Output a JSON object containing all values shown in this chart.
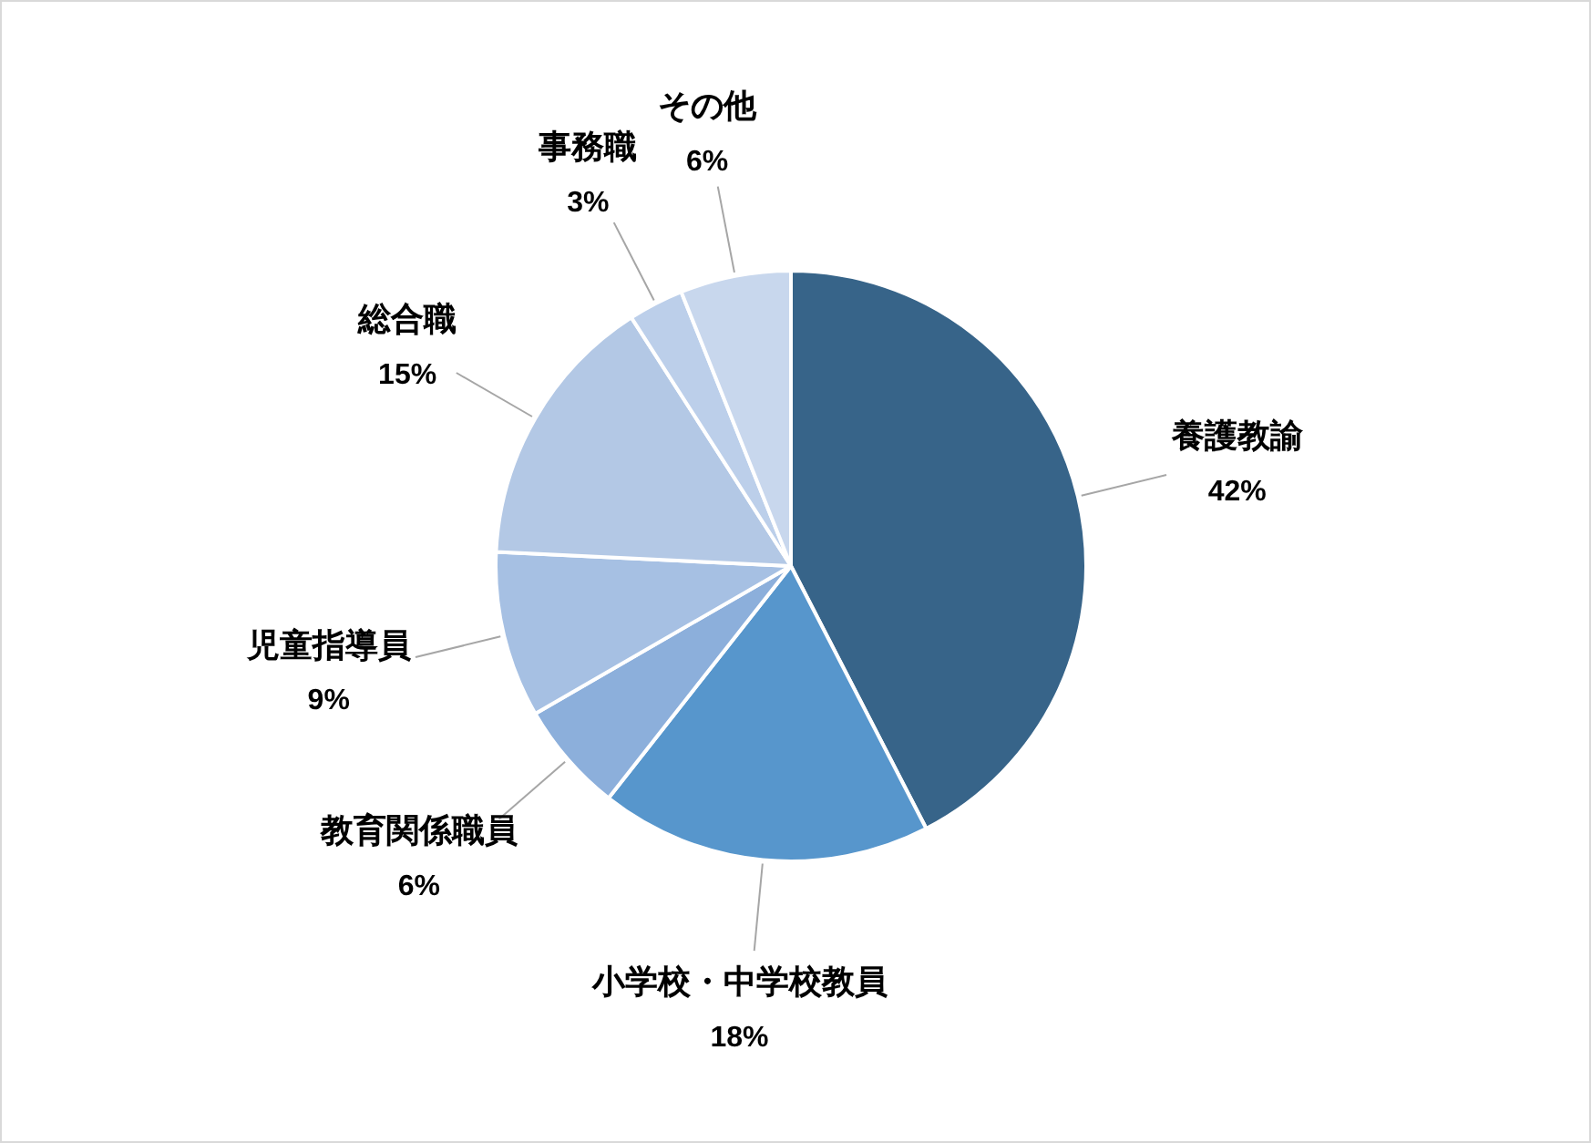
{
  "chart_data": {
    "type": "pie",
    "categories": [
      "養護教諭",
      "小学校・中学校教員",
      "教育関係職員",
      "児童指導員",
      "総合職",
      "事務職",
      "その他"
    ],
    "values": [
      42,
      18,
      6,
      9,
      15,
      3,
      6
    ],
    "value_labels": [
      "42%",
      "18%",
      "6%",
      "9%",
      "15%",
      "3%",
      "6%"
    ],
    "colors": [
      "#376489",
      "#5796cc",
      "#8cafdb",
      "#a6c0e3",
      "#b3c8e5",
      "#bccfea",
      "#c8d7ed"
    ]
  }
}
